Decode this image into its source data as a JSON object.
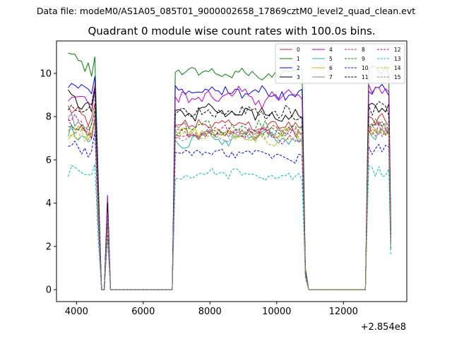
{
  "chart_data": {
    "type": "line",
    "suptitle": "Data file: modeM0/AS1A05_085T01_9000002658_17869cztM0_level2_quad_clean.evt",
    "title": "Quadrant 0 module wise count rates with 100.0s bins.",
    "xlabel": "",
    "ylabel": "",
    "x_offset_label": "+2.854e8",
    "xlim": [
      3400,
      13900
    ],
    "ylim": [
      -0.55,
      11.5
    ],
    "xticks": [
      4000,
      6000,
      8000,
      10000,
      12000
    ],
    "xtick_labels": [
      "4000",
      "6000",
      "8000",
      "10000",
      "12000"
    ],
    "yticks": [
      0,
      2,
      4,
      6,
      8,
      10
    ],
    "ytick_labels": [
      "0",
      "2",
      "4",
      "6",
      "8",
      "10"
    ],
    "grid": false,
    "legend": {
      "placement": "upper right",
      "columns": 4
    },
    "segments": [
      {
        "start": 3750,
        "end": 4550,
        "step": 100
      },
      {
        "start": 6960,
        "end": 10760,
        "step": 100
      },
      {
        "start": 12760,
        "end": 13360,
        "step": 100
      }
    ],
    "segment_ends_to_zero": true,
    "spike": {
      "x": 4930,
      "note": "short data gap spike near 4930"
    },
    "series": [
      {
        "name": "0",
        "color": "#d62728",
        "style": "solid",
        "level": 7.6,
        "start_level": 8.4,
        "jitter": 0.35
      },
      {
        "name": "1",
        "color": "#008000",
        "style": "solid",
        "level": 10.0,
        "start_level": 10.9,
        "jitter": 0.3
      },
      {
        "name": "2",
        "color": "#0000ff",
        "style": "solid",
        "level": 9.1,
        "start_level": 9.6,
        "jitter": 0.35
      },
      {
        "name": "3",
        "color": "#000000",
        "style": "solid",
        "level": 8.2,
        "start_level": 8.9,
        "jitter": 0.35
      },
      {
        "name": "4",
        "color": "#c000c0",
        "style": "solid",
        "level": 8.9,
        "start_level": 9.1,
        "jitter": 0.4
      },
      {
        "name": "5",
        "color": "#20b2aa",
        "style": "solid",
        "level": 7.0,
        "start_level": 7.4,
        "jitter": 0.35
      },
      {
        "name": "6",
        "color": "#c8b400",
        "style": "solid",
        "level": 7.1,
        "start_level": 7.3,
        "jitter": 0.35
      },
      {
        "name": "7",
        "color": "#808080",
        "style": "solid",
        "level": 7.3,
        "start_level": 7.9,
        "jitter": 0.35
      },
      {
        "name": "8",
        "color": "#d62728",
        "style": "dashed",
        "level": 7.3,
        "start_level": 7.9,
        "jitter": 0.35
      },
      {
        "name": "9",
        "color": "#008000",
        "style": "dashed",
        "level": 7.4,
        "start_level": 7.8,
        "jitter": 0.35
      },
      {
        "name": "10",
        "color": "#0000ff",
        "style": "dashed",
        "level": 6.3,
        "start_level": 6.8,
        "jitter": 0.3
      },
      {
        "name": "11",
        "color": "#000000",
        "style": "dashed",
        "level": 8.2,
        "start_level": 8.6,
        "jitter": 0.35
      },
      {
        "name": "12",
        "color": "#c000c0",
        "style": "dashed",
        "level": 7.2,
        "start_level": 8.0,
        "jitter": 0.35
      },
      {
        "name": "13",
        "color": "#00bcbc",
        "style": "dashed",
        "level": 5.3,
        "start_level": 5.5,
        "jitter": 0.3
      },
      {
        "name": "14",
        "color": "#c8b400",
        "style": "dashed",
        "level": 7.0,
        "start_level": 7.2,
        "jitter": 0.35
      },
      {
        "name": "15",
        "color": "#808080",
        "style": "dashed",
        "level": 7.2,
        "start_level": 7.4,
        "jitter": 0.35
      }
    ]
  }
}
